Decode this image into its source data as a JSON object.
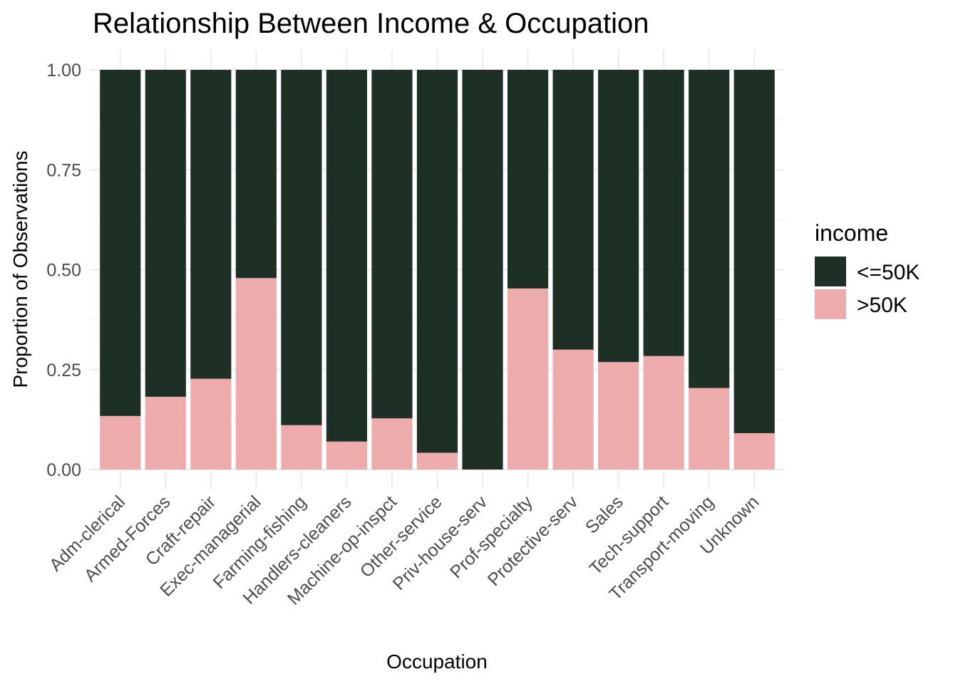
{
  "chart_data": {
    "type": "bar",
    "stacked": "fill",
    "title": "Relationship Between Income & Occupation",
    "xlabel": "Occupation",
    "ylabel": "Proportion of Observations",
    "ylim": [
      0,
      1
    ],
    "yticks": [
      "0.00",
      "0.25",
      "0.50",
      "0.75",
      "1.00"
    ],
    "grid": true,
    "legend": {
      "title": "income",
      "position": "right"
    },
    "categories": [
      "Adm-clerical",
      "Armed-Forces",
      "Craft-repair",
      "Exec-managerial",
      "Farming-fishing",
      "Handlers-cleaners",
      "Machine-op-inspct",
      "Other-service",
      "Priv-house-serv",
      "Prof-specialty",
      "Protective-serv",
      "Sales",
      "Tech-support",
      "Transport-moving",
      "Unknown"
    ],
    "series": [
      {
        "name": "<=50K",
        "color": "#1e3026",
        "values": [
          0.866,
          0.818,
          0.773,
          0.521,
          0.889,
          0.93,
          0.872,
          0.958,
          1.0,
          0.547,
          0.7,
          0.731,
          0.716,
          0.796,
          0.909
        ]
      },
      {
        "name": ">50K",
        "color": "#edacab",
        "values": [
          0.134,
          0.182,
          0.227,
          0.479,
          0.111,
          0.07,
          0.128,
          0.042,
          0.0,
          0.453,
          0.3,
          0.269,
          0.284,
          0.204,
          0.091
        ]
      }
    ]
  }
}
